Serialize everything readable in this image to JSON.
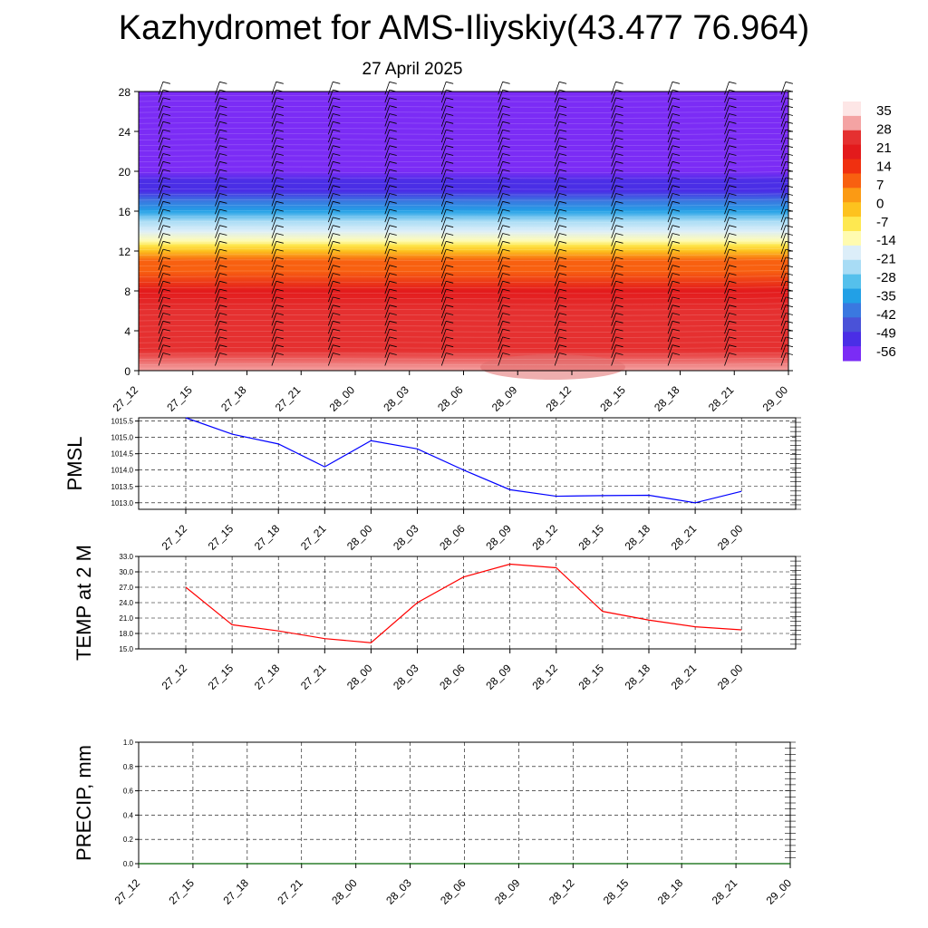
{
  "title": "Kazhydromet for AMS-Iliyskiy(43.477 76.964)",
  "subtitle": "27 April 2025",
  "chart_data": [
    {
      "type": "heatmap",
      "name": "vertical temperature cross-section with wind barbs",
      "x_ticks": [
        "27_12",
        "27_15",
        "27_18",
        "27_21",
        "28_00",
        "28_03",
        "28_06",
        "28_09",
        "28_12",
        "28_15",
        "28_18",
        "28_21",
        "29_00"
      ],
      "y_ticks": [
        0,
        4,
        8,
        12,
        16,
        20,
        24,
        28
      ],
      "ylim": [
        0,
        28
      ],
      "colorbar": {
        "labels": [
          35,
          28,
          21,
          14,
          7,
          0,
          -7,
          -14,
          -21,
          -28,
          -35,
          -42,
          -49,
          -56
        ],
        "colors": [
          "#fde6e6",
          "#f4a3a3",
          "#e53030",
          "#e31a1c",
          "#f03010",
          "#f86010",
          "#fb9a14",
          "#fdc21e",
          "#fee850",
          "#fffbb0",
          "#dceef9",
          "#a8dcf5",
          "#55c0ec",
          "#22a0e6",
          "#3a78e0",
          "#4a52d8",
          "#4a2ee6",
          "#7b2cf5"
        ]
      },
      "temperature_profile": [
        {
          "height": 0,
          "t": 28
        },
        {
          "height": 2,
          "t": 27
        },
        {
          "height": 4,
          "t": 25
        },
        {
          "height": 6,
          "t": 22
        },
        {
          "height": 8,
          "t": 17
        },
        {
          "height": 10,
          "t": 10
        },
        {
          "height": 11,
          "t": 5
        },
        {
          "height": 12,
          "t": -1
        },
        {
          "height": 12.6,
          "t": -8
        },
        {
          "height": 13,
          "t": -14
        },
        {
          "height": 14,
          "t": -21
        },
        {
          "height": 15,
          "t": -28
        },
        {
          "height": 16,
          "t": -35
        },
        {
          "height": 17,
          "t": -45
        },
        {
          "height": 18,
          "t": -52
        },
        {
          "height": 19,
          "t": -56
        },
        {
          "height": 20,
          "t": -60
        },
        {
          "height": 28,
          "t": -62
        }
      ],
      "wind_barbs": "present"
    },
    {
      "type": "line",
      "ylabel": "PMSL",
      "y_ticks": [
        "1013.0",
        "1013.5",
        "1014.0",
        "1014.5",
        "1015.0",
        "1015.5"
      ],
      "ylim": [
        1012.8,
        1015.6
      ],
      "x": [
        "27_12",
        "27_15",
        "27_18",
        "27_21",
        "28_00",
        "28_03",
        "28_06",
        "28_09",
        "28_12",
        "28_15",
        "28_18",
        "28_21",
        "29_00"
      ],
      "series": [
        {
          "values": [
            1015.6,
            1015.1,
            1014.8,
            1014.1,
            1014.9,
            1014.65,
            1014.0,
            1013.4,
            1013.2,
            1013.22,
            1013.23,
            1013.0,
            1013.35
          ],
          "color": "#0000ff"
        }
      ]
    },
    {
      "type": "line",
      "ylabel": "TEMP at 2 M",
      "y_ticks": [
        "15.0",
        "18.0",
        "21.0",
        "24.0",
        "27.0",
        "30.0",
        "33.0"
      ],
      "ylim": [
        15,
        33
      ],
      "x": [
        "27_12",
        "27_15",
        "27_18",
        "27_21",
        "28_00",
        "28_03",
        "28_06",
        "28_09",
        "28_12",
        "28_15",
        "28_18",
        "28_21",
        "29_00"
      ],
      "series": [
        {
          "values": [
            27.0,
            19.7,
            18.5,
            17.0,
            16.2,
            24.0,
            29.0,
            31.5,
            30.8,
            22.3,
            20.6,
            19.3,
            18.7
          ],
          "color": "#ff0000"
        }
      ]
    },
    {
      "type": "line",
      "ylabel": "PRECIP, mm",
      "y_ticks": [
        "0.0",
        "0.2",
        "0.4",
        "0.6",
        "0.8",
        "1.0"
      ],
      "ylim": [
        0,
        1
      ],
      "x": [
        "27_12",
        "27_15",
        "27_18",
        "27_21",
        "28_00",
        "28_03",
        "28_06",
        "28_09",
        "28_12",
        "28_15",
        "28_18",
        "28_21",
        "29_00"
      ],
      "series": [
        {
          "values": [
            0,
            0,
            0,
            0,
            0,
            0,
            0,
            0,
            0,
            0,
            0,
            0,
            0
          ],
          "color": "#006400"
        }
      ]
    }
  ]
}
